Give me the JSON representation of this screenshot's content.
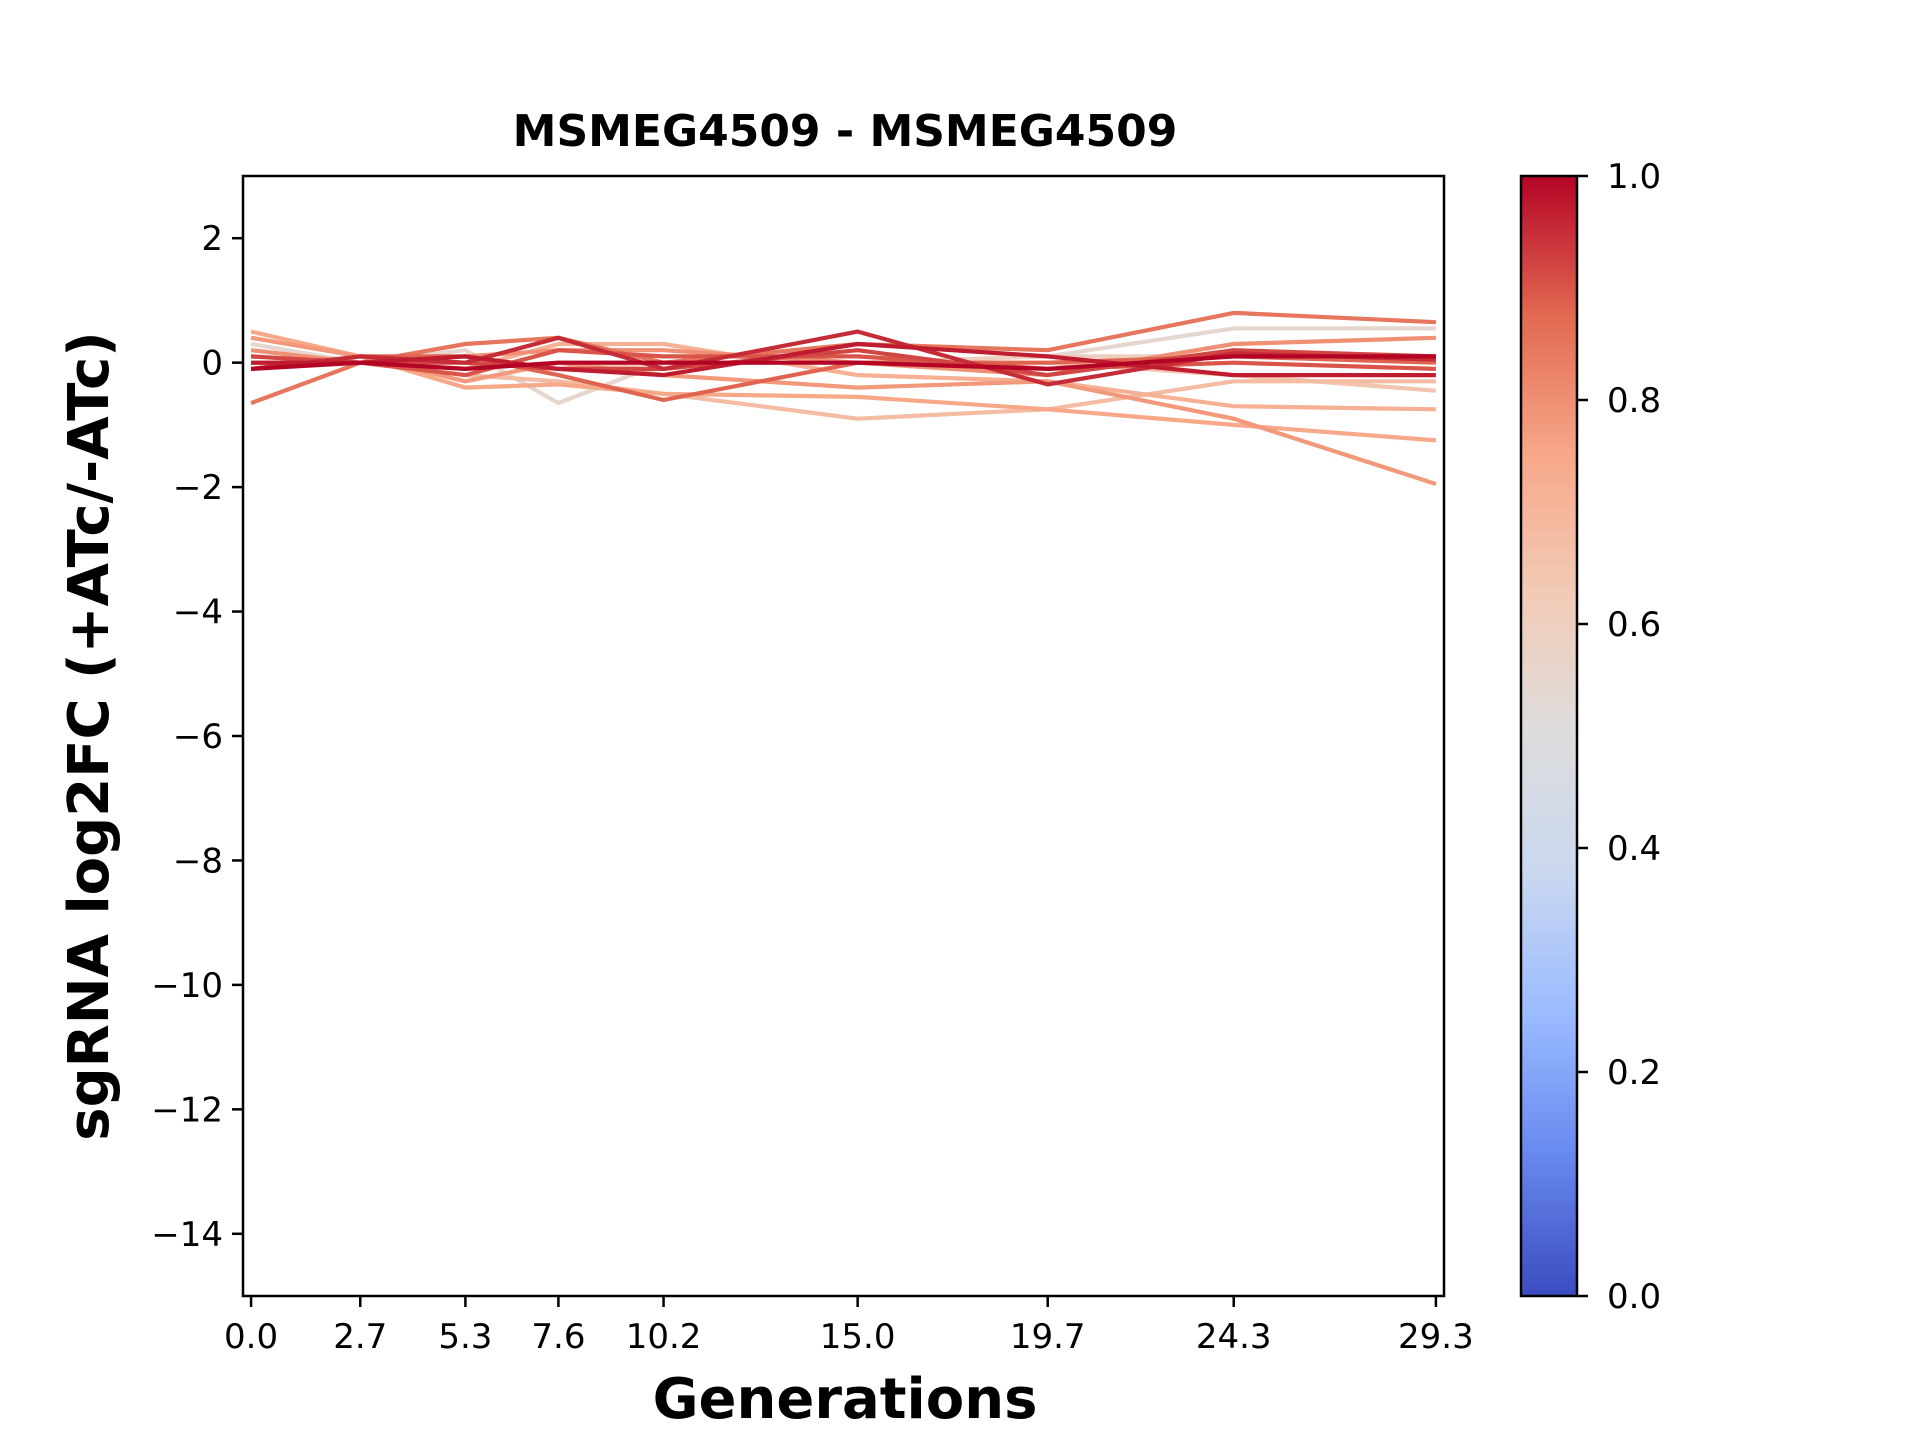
{
  "chart_data": {
    "type": "line",
    "title": "MSMEG4509 - MSMEG4509",
    "xlabel": "Generations",
    "ylabel": "sgRNA log2FC (+ATc/-ATc)",
    "x": [
      0.0,
      2.7,
      5.3,
      7.6,
      10.2,
      15.0,
      19.7,
      24.3,
      29.3
    ],
    "x_tick_labels": [
      "0.0",
      "2.7",
      "5.3",
      "7.6",
      "10.2",
      "15.0",
      "19.7",
      "24.3",
      "29.3"
    ],
    "xlim": [
      -0.2,
      29.5
    ],
    "ylim": [
      -15,
      3
    ],
    "y_ticks": [
      2,
      0,
      -2,
      -4,
      -6,
      -8,
      -10,
      -12,
      -14
    ],
    "y_tick_labels": [
      "2",
      "0",
      "−2",
      "−4",
      "−6",
      "−8",
      "−10",
      "−12",
      "−14"
    ],
    "colorbar": {
      "colormap": "coolwarm",
      "range": [
        0.0,
        1.0
      ],
      "tick_labels": [
        "0.0",
        "0.2",
        "0.4",
        "0.6",
        "0.8",
        "1.0"
      ],
      "stops": [
        "#3b4cc0",
        "#6788ee",
        "#9abbff",
        "#c9d7f0",
        "#dddddd",
        "#f2cbb7",
        "#f7a889",
        "#e26952",
        "#b40426"
      ]
    },
    "series": [
      {
        "color_value": 0.55,
        "values": [
          0.3,
          0.0,
          0.2,
          -0.65,
          0.0,
          0.3,
          0.1,
          0.55,
          0.55
        ]
      },
      {
        "color_value": 0.6,
        "values": [
          0.0,
          0.0,
          0.0,
          -0.1,
          0.0,
          0.0,
          0.1,
          0.1,
          0.1
        ]
      },
      {
        "color_value": 0.65,
        "values": [
          0.1,
          0.0,
          -0.1,
          0.0,
          0.0,
          0.0,
          0.0,
          -0.2,
          -0.45
        ]
      },
      {
        "color_value": 0.68,
        "values": [
          0.1,
          0.0,
          -0.2,
          -0.3,
          -0.5,
          -0.9,
          -0.75,
          -0.3,
          -0.3
        ]
      },
      {
        "color_value": 0.72,
        "values": [
          0.0,
          0.0,
          -0.1,
          0.3,
          0.3,
          -0.2,
          -0.3,
          -0.7,
          -0.75
        ]
      },
      {
        "color_value": 0.75,
        "values": [
          0.5,
          0.1,
          -0.4,
          -0.35,
          -0.5,
          -0.55,
          -0.75,
          -1.0,
          -1.25
        ]
      },
      {
        "color_value": 0.78,
        "values": [
          0.4,
          0.1,
          -0.3,
          0.0,
          -0.2,
          -0.4,
          -0.3,
          -0.9,
          -1.95
        ]
      },
      {
        "color_value": 0.8,
        "values": [
          0.2,
          0.0,
          0.1,
          0.2,
          0.2,
          0.0,
          -0.2,
          0.3,
          0.4
        ]
      },
      {
        "color_value": 0.85,
        "values": [
          -0.65,
          0.0,
          0.3,
          0.4,
          0.0,
          0.3,
          0.2,
          0.8,
          0.65
        ]
      },
      {
        "color_value": 0.88,
        "values": [
          -0.1,
          0.1,
          0.1,
          -0.2,
          -0.6,
          0.0,
          0.0,
          0.1,
          0.0
        ]
      },
      {
        "color_value": 0.9,
        "values": [
          0.0,
          0.0,
          -0.2,
          0.2,
          0.1,
          0.1,
          -0.1,
          0.0,
          -0.1
        ]
      },
      {
        "color_value": 0.92,
        "values": [
          0.1,
          0.0,
          0.0,
          -0.1,
          -0.1,
          0.2,
          -0.2,
          0.2,
          0.1
        ]
      },
      {
        "color_value": 0.95,
        "values": [
          -0.1,
          0.1,
          0.0,
          0.4,
          -0.1,
          0.5,
          -0.35,
          0.15,
          0.05
        ]
      },
      {
        "color_value": 0.97,
        "values": [
          0.0,
          0.0,
          0.1,
          -0.1,
          -0.2,
          0.3,
          0.1,
          -0.2,
          -0.2
        ]
      },
      {
        "color_value": 1.0,
        "values": [
          -0.1,
          0.0,
          -0.1,
          0.0,
          0.0,
          0.0,
          -0.1,
          0.1,
          0.1
        ]
      }
    ]
  }
}
